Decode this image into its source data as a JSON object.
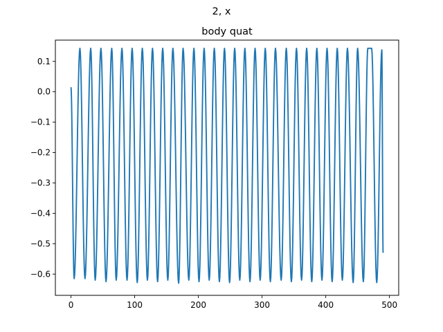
{
  "chart_data": {
    "type": "line",
    "suptitle": "2, x",
    "title": "body quat",
    "xlabel": "",
    "ylabel": "",
    "xlim": [
      -24.5,
      514.5
    ],
    "ylim": [
      -0.67,
      0.17
    ],
    "xticks": [
      0,
      100,
      200,
      300,
      400,
      500
    ],
    "yticks": [
      0.1,
      0.0,
      -0.1,
      -0.2,
      -0.3,
      -0.4,
      -0.5,
      -0.6
    ],
    "ytick_labels": [
      "0.1",
      "0.0",
      "−0.1",
      "−0.2",
      "−0.3",
      "−0.4",
      "−0.5",
      "−0.6"
    ],
    "grid": false,
    "series": [
      {
        "color": "#1f77b4",
        "x_start": 0,
        "x_end": 490,
        "y_start": 0.015,
        "y_end": -0.53,
        "peaks_x": [
          14,
          31,
          47,
          64,
          80,
          96,
          112,
          128,
          144,
          160,
          176,
          193,
          209,
          225,
          241,
          257,
          273,
          289,
          305,
          321,
          338,
          354,
          370,
          386,
          402,
          418,
          434,
          450,
          466,
          472,
          488
        ],
        "peaks_y": [
          0.143,
          0.143,
          0.143,
          0.143,
          0.143,
          0.143,
          0.143,
          0.143,
          0.143,
          0.143,
          0.143,
          0.143,
          0.143,
          0.143,
          0.143,
          0.143,
          0.143,
          0.143,
          0.143,
          0.143,
          0.143,
          0.143,
          0.143,
          0.143,
          0.143,
          0.143,
          0.143,
          0.143,
          0.143,
          0.143,
          0.138
        ],
        "troughs_x": [
          5,
          22,
          38,
          55,
          71,
          88,
          104,
          120,
          136,
          152,
          169,
          185,
          201,
          217,
          233,
          249,
          265,
          281,
          297,
          313,
          330,
          346,
          362,
          378,
          394,
          410,
          426,
          443,
          459,
          480
        ],
        "troughs_y": [
          -0.615,
          -0.615,
          -0.62,
          -0.625,
          -0.62,
          -0.62,
          -0.628,
          -0.62,
          -0.625,
          -0.62,
          -0.63,
          -0.62,
          -0.625,
          -0.62,
          -0.625,
          -0.628,
          -0.62,
          -0.625,
          -0.62,
          -0.625,
          -0.62,
          -0.625,
          -0.62,
          -0.625,
          -0.62,
          -0.625,
          -0.62,
          -0.628,
          -0.625,
          -0.628
        ]
      }
    ]
  }
}
